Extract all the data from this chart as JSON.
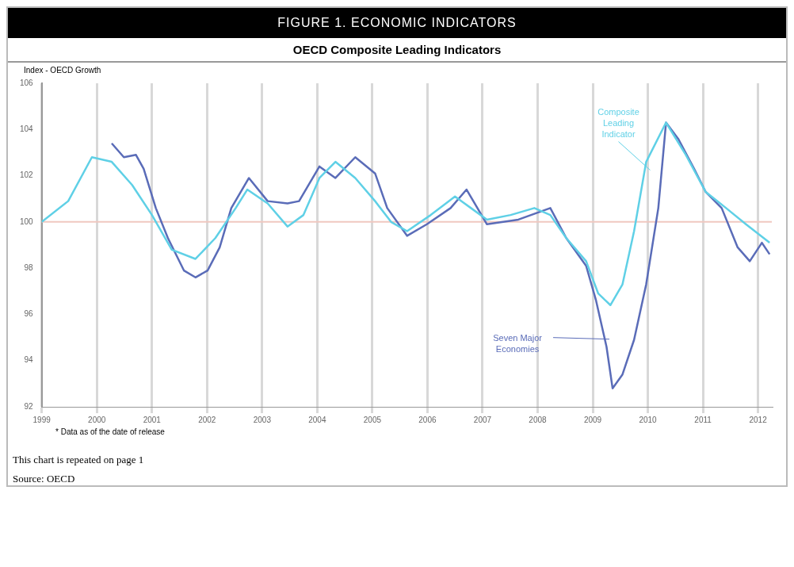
{
  "chart_data": {
    "type": "line",
    "title": "FIGURE 1. ECONOMIC INDICATORS",
    "subtitle": "OECD Composite Leading Indicators",
    "ylabel": "Index - OECD Growth",
    "xlim": [
      1999,
      2012.25
    ],
    "xticks": [
      {
        "value": 1999,
        "label": "1999"
      },
      {
        "value": 2000,
        "label": "2000"
      },
      {
        "value": 2001,
        "label": "2001"
      },
      {
        "value": 2002,
        "label": "2002"
      },
      {
        "value": 2003,
        "label": "2003"
      },
      {
        "value": 2004,
        "label": "2004"
      },
      {
        "value": 2005,
        "label": "2005"
      },
      {
        "value": 2006,
        "label": "2006"
      },
      {
        "value": 2007,
        "label": "2007"
      },
      {
        "value": 2008,
        "label": "2008"
      },
      {
        "value": 2009,
        "label": "2009"
      },
      {
        "value": 2010,
        "label": "2010"
      },
      {
        "value": 2011,
        "label": "2011"
      },
      {
        "value": 2012,
        "label": "2012"
      }
    ],
    "ylim": [
      92,
      106
    ],
    "yticks": [
      92,
      94,
      96,
      98,
      100,
      102,
      104,
      106
    ],
    "grid": "x",
    "legend": false,
    "marker": "none",
    "line_style": "solid",
    "ref_lines": [
      {
        "axis": "y",
        "value": 100,
        "color": "#f0c8c0"
      }
    ],
    "series": [
      {
        "name": "Composite Leading Indicator",
        "color": "#5fd0e6",
        "x": [
          1999.0,
          1999.48,
          1999.91,
          2000.27,
          2000.64,
          2001.0,
          2001.36,
          2001.79,
          2002.15,
          2002.52,
          2002.73,
          2003.1,
          2003.46,
          2003.75,
          2004.04,
          2004.33,
          2004.69,
          2005.05,
          2005.34,
          2005.63,
          2006.06,
          2006.5,
          2006.79,
          2007.08,
          2007.51,
          2007.94,
          2008.23,
          2008.52,
          2008.88,
          2009.1,
          2009.32,
          2009.54,
          2009.75,
          2009.97,
          2010.33,
          2010.69,
          2011.05,
          2011.42,
          2011.78,
          2012.21
        ],
        "values": [
          100.0,
          100.9,
          102.8,
          102.6,
          101.6,
          100.3,
          98.8,
          98.4,
          99.3,
          100.6,
          101.4,
          100.8,
          99.8,
          100.3,
          101.9,
          102.6,
          101.9,
          100.9,
          100.0,
          99.6,
          100.3,
          101.1,
          100.6,
          100.1,
          100.3,
          100.6,
          100.3,
          99.3,
          98.3,
          96.9,
          96.4,
          97.3,
          99.6,
          102.6,
          104.3,
          102.9,
          101.3,
          100.6,
          99.9,
          99.1
        ]
      },
      {
        "name": "Seven Major Economies",
        "color": "#5a6cb8",
        "x": [
          2000.27,
          2000.49,
          2000.71,
          2000.85,
          2001.07,
          2001.29,
          2001.58,
          2001.79,
          2002.01,
          2002.23,
          2002.44,
          2002.76,
          2003.1,
          2003.46,
          2003.67,
          2004.04,
          2004.33,
          2004.69,
          2005.05,
          2005.27,
          2005.63,
          2005.99,
          2006.42,
          2006.71,
          2007.08,
          2007.65,
          2008.23,
          2008.52,
          2008.88,
          2009.06,
          2009.25,
          2009.36,
          2009.54,
          2009.75,
          2009.97,
          2010.19,
          2010.33,
          2010.55,
          2010.84,
          2011.05,
          2011.34,
          2011.63,
          2011.85,
          2012.07,
          2012.21
        ],
        "values": [
          103.4,
          102.8,
          102.9,
          102.3,
          100.6,
          99.3,
          97.9,
          97.6,
          97.9,
          98.9,
          100.6,
          101.9,
          100.9,
          100.8,
          100.9,
          102.4,
          101.9,
          102.8,
          102.1,
          100.6,
          99.4,
          99.9,
          100.6,
          101.4,
          99.9,
          100.1,
          100.6,
          99.3,
          98.1,
          96.6,
          94.6,
          92.8,
          93.4,
          94.9,
          97.3,
          100.6,
          104.3,
          103.6,
          102.3,
          101.3,
          100.6,
          98.9,
          98.3,
          99.1,
          98.6
        ]
      }
    ],
    "annotations": [
      "* Data as of the date of release",
      "This chart is repeated on page 1",
      "Source: OECD"
    ]
  }
}
